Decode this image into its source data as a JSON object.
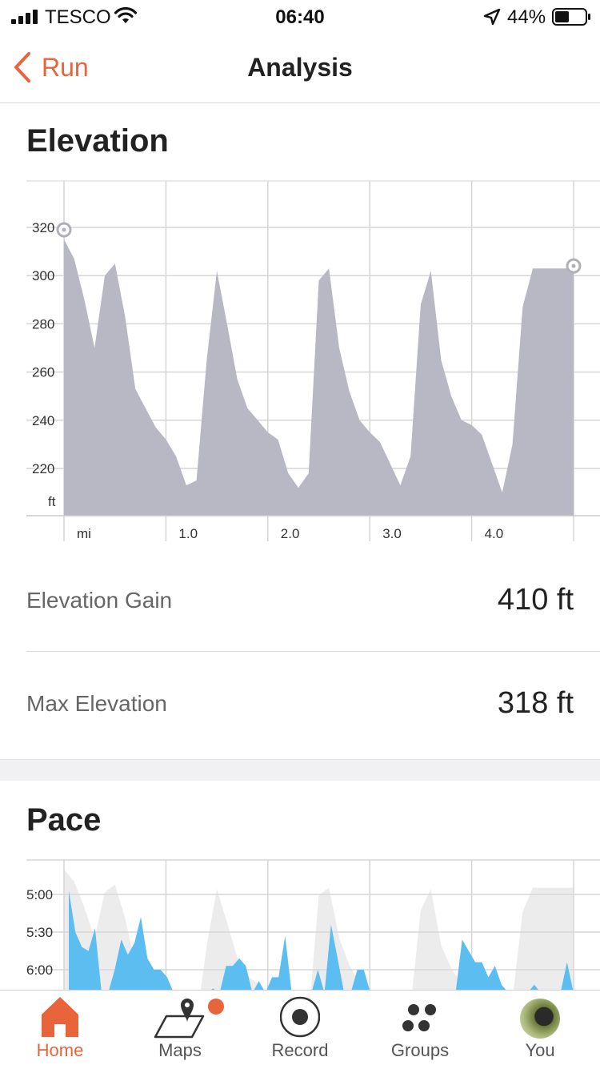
{
  "status_bar": {
    "carrier": "TESCO",
    "time": "06:40",
    "battery": "44%"
  },
  "nav": {
    "back_label": "Run",
    "title": "Analysis"
  },
  "elevation": {
    "title": "Elevation",
    "stats": [
      {
        "label": "Elevation Gain",
        "value": "410 ft"
      },
      {
        "label": "Max Elevation",
        "value": "318 ft"
      }
    ]
  },
  "pace": {
    "title": "Pace"
  },
  "tabs": [
    {
      "label": "Home",
      "icon": "home-icon",
      "active": true
    },
    {
      "label": "Maps",
      "icon": "maps-icon",
      "active": false
    },
    {
      "label": "Record",
      "icon": "record-icon",
      "active": false
    },
    {
      "label": "Groups",
      "icon": "groups-icon",
      "active": false
    },
    {
      "label": "You",
      "icon": "avatar",
      "active": false
    }
  ],
  "colors": {
    "accent": "#e8643a",
    "elevation_fill": "#b8b8c4",
    "pace_fill": "#5bbdf0",
    "grade_fill": "#ececec"
  },
  "chart_data": [
    {
      "type": "area",
      "title": "Elevation",
      "xlabel": "mi",
      "ylabel": "ft",
      "x_ticks": [
        "1.0",
        "2.0",
        "3.0",
        "4.0"
      ],
      "y_ticks": [
        "320",
        "300",
        "280",
        "260",
        "240",
        "220"
      ],
      "xlim": [
        0,
        5
      ],
      "ylim": [
        200,
        330
      ],
      "x": [
        0,
        0.1,
        0.2,
        0.3,
        0.4,
        0.5,
        0.6,
        0.7,
        0.8,
        0.9,
        1.0,
        1.1,
        1.2,
        1.3,
        1.4,
        1.5,
        1.6,
        1.7,
        1.8,
        1.9,
        2.0,
        2.1,
        2.2,
        2.3,
        2.4,
        2.5,
        2.6,
        2.7,
        2.8,
        2.9,
        3.0,
        3.1,
        3.2,
        3.3,
        3.4,
        3.5,
        3.6,
        3.7,
        3.8,
        3.9,
        4.0,
        4.1,
        4.2,
        4.3,
        4.4,
        4.5,
        4.6,
        4.7,
        4.8,
        4.9,
        5.0
      ],
      "values": [
        315,
        307,
        290,
        270,
        300,
        305,
        283,
        253,
        245,
        237,
        232,
        225,
        213,
        215,
        265,
        302,
        280,
        257,
        245,
        240,
        235,
        232,
        218,
        212,
        218,
        298,
        303,
        270,
        252,
        240,
        235,
        231,
        222,
        213,
        225,
        288,
        302,
        265,
        250,
        240,
        238,
        234,
        222,
        210,
        230,
        287,
        303,
        303,
        303,
        303,
        303
      ],
      "markers": [
        {
          "x": 0,
          "y": 318
        },
        {
          "x": 5,
          "y": 303
        }
      ]
    },
    {
      "type": "area",
      "title": "Pace",
      "y_ticks": [
        "5:00",
        "5:30",
        "6:00"
      ],
      "xlim": [
        0,
        5
      ],
      "series": [
        {
          "values": [
            4.95,
            5.5,
            5.7,
            5.75,
            5.45,
            6.9,
            6.9,
            6.0,
            5.6,
            5.8,
            5.65,
            5.3,
            5.85,
            6.0,
            6.0,
            6.1,
            6.35,
            6.4,
            6.6,
            6.9,
            6.9,
            6.35,
            6.25,
            6.9,
            5.95,
            5.95,
            5.85,
            5.95,
            6.4,
            6.15,
            6.9,
            6.1,
            6.1,
            5.55,
            6.9,
            6.9,
            6.9,
            6.9,
            6.0,
            6.9,
            5.4,
            5.85,
            6.9,
            6.9,
            6.0,
            6.0,
            6.9,
            6.9,
            6.9,
            6.9,
            6.9,
            6.9,
            6.5,
            6.9,
            6.9,
            6.9,
            6.9,
            6.9,
            6.9,
            6.9,
            5.6,
            5.75,
            5.9,
            5.9,
            6.1,
            5.95,
            6.2,
            6.3,
            6.4,
            6.9,
            6.9,
            6.2,
            6.4,
            6.9,
            6.9,
            6.9,
            5.9,
            6.9
          ]
        }
      ]
    }
  ]
}
